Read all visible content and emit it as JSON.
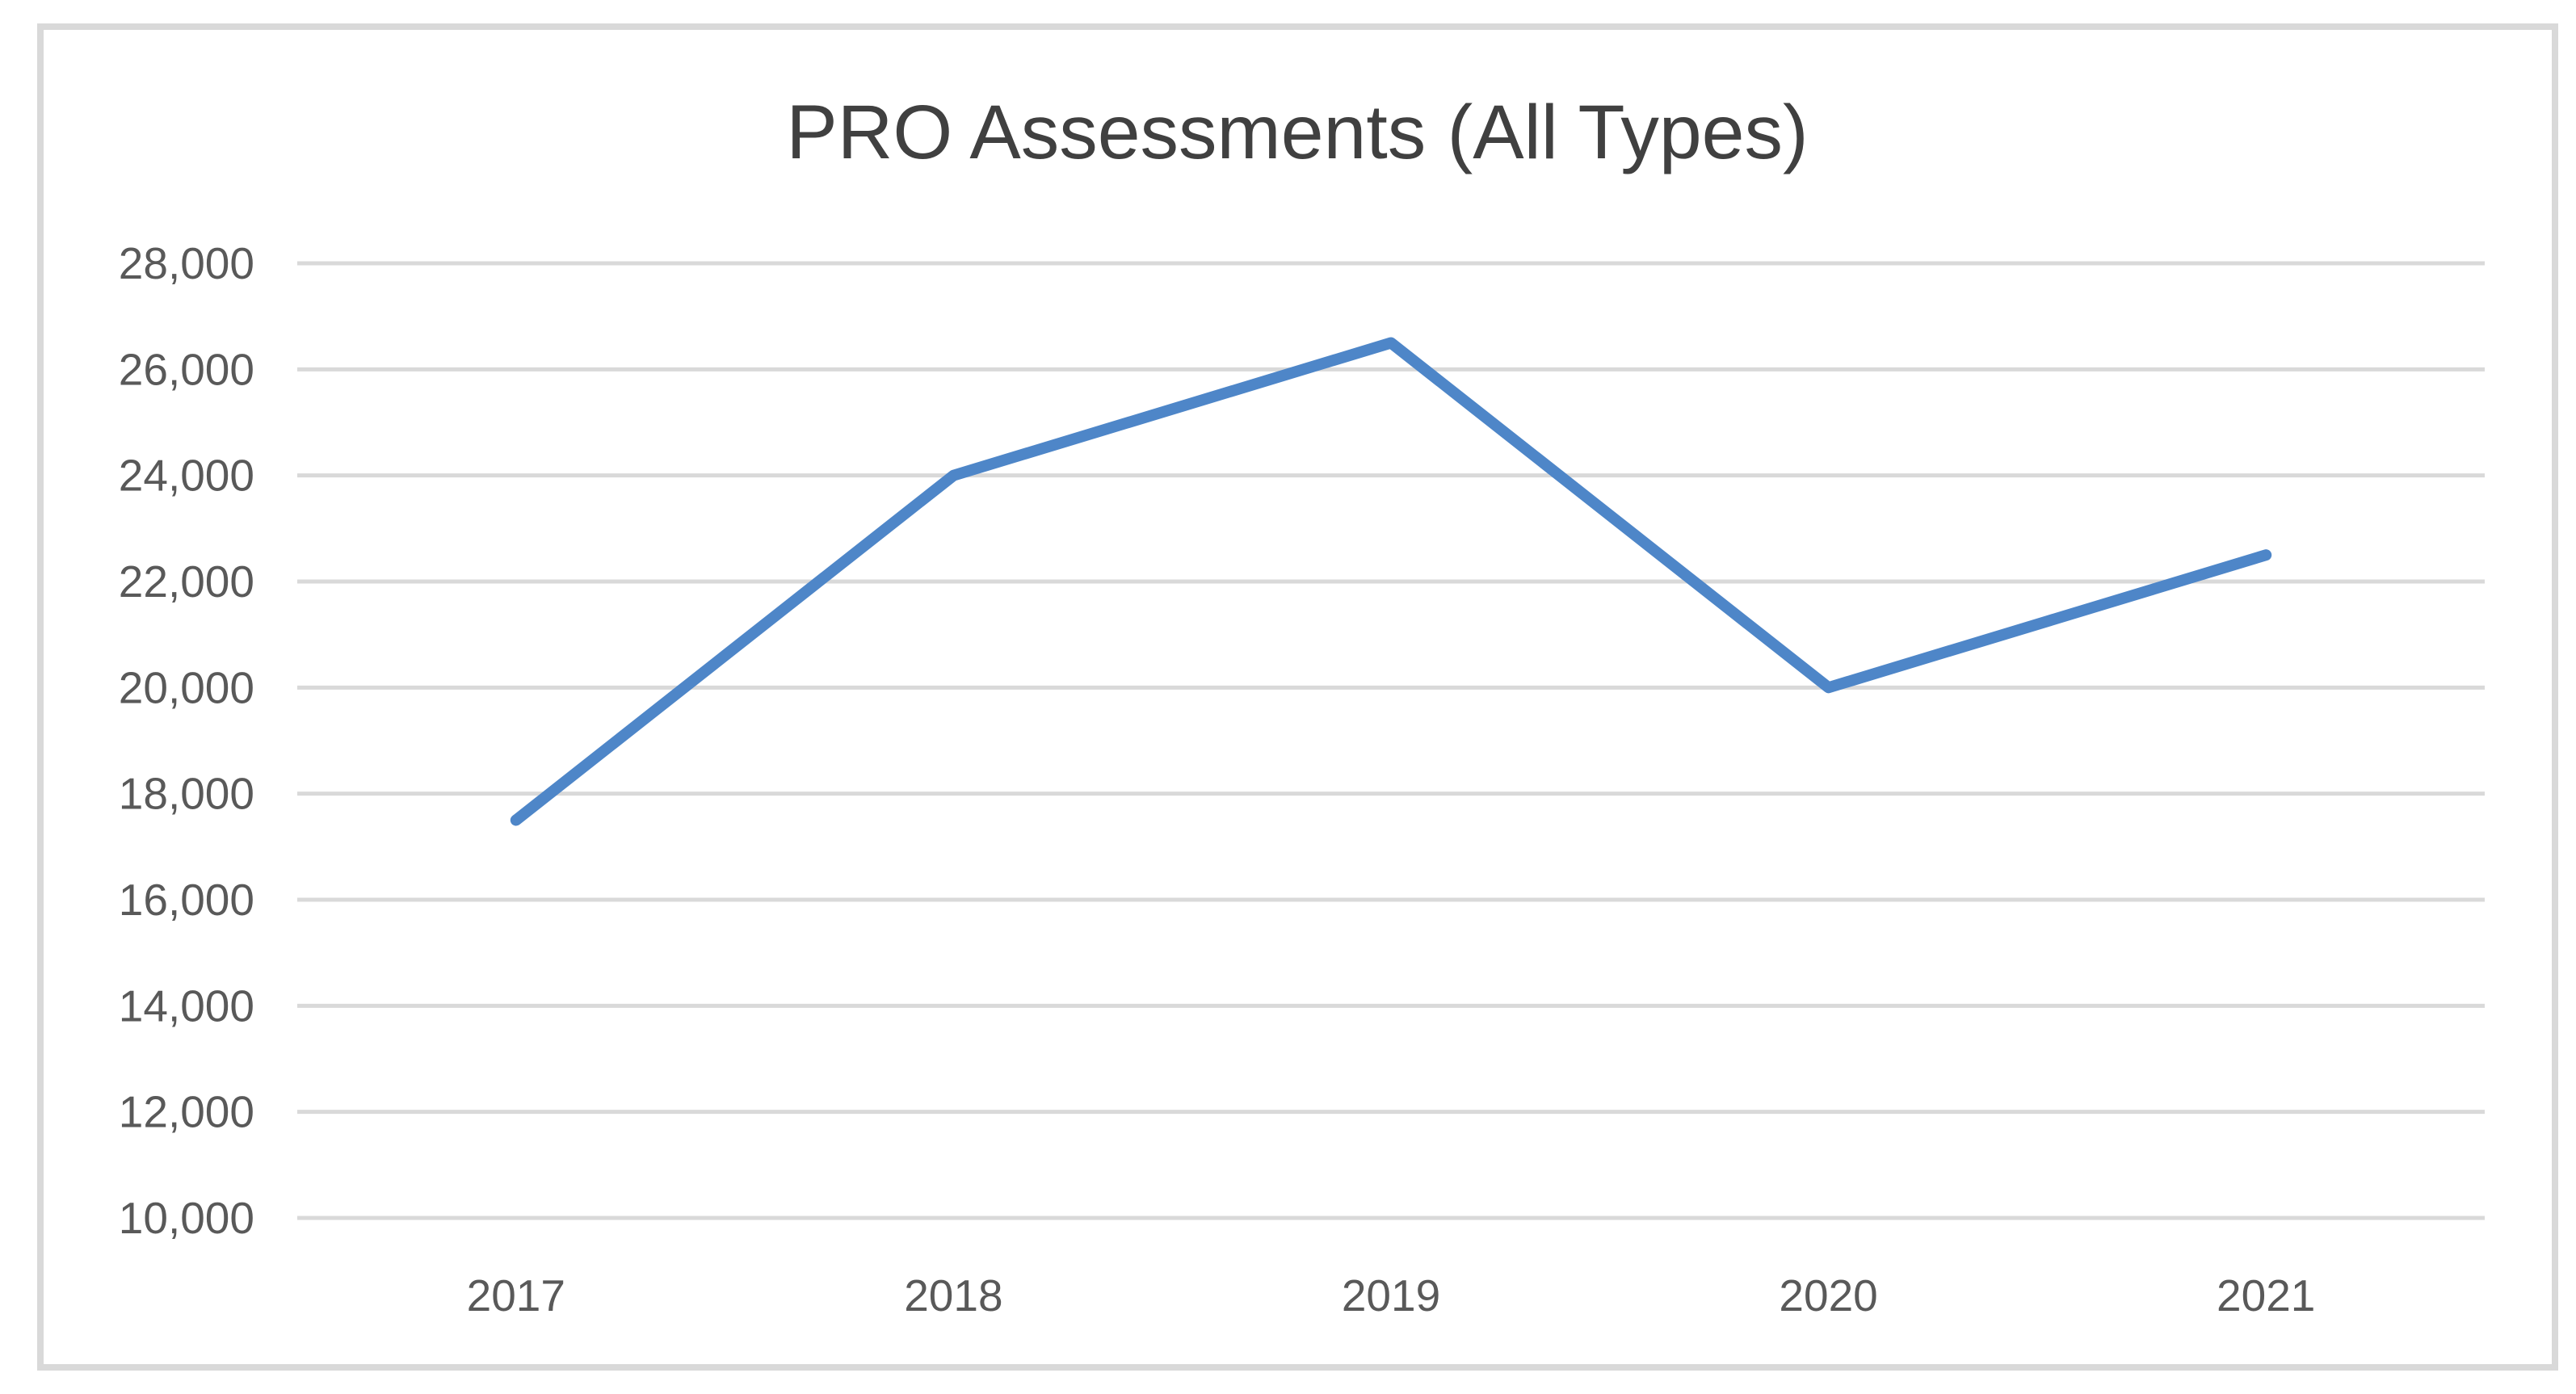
{
  "chart_data": {
    "type": "line",
    "title": "PRO Assessments (All Types)",
    "categories": [
      "2017",
      "2018",
      "2019",
      "2020",
      "2021"
    ],
    "values": [
      17500,
      24000,
      26500,
      20000,
      22500
    ],
    "xlabel": "",
    "ylabel": "",
    "ylim": [
      10000,
      28000
    ],
    "ytick_step": 2000,
    "ytick_labels_top_to_bottom": [
      "28,000",
      "26,000",
      "24,000",
      "22,000",
      "20,000",
      "18,000",
      "16,000",
      "14,000",
      "12,000",
      "10,000"
    ],
    "grid": "horizontal-only",
    "legend": "none",
    "colors": {
      "line": "#4E86C8",
      "gridline": "#D9D9D9",
      "frame_border": "#D9D9D9",
      "title_text": "#404040",
      "axis_text": "#595959",
      "background": "#FFFFFF"
    }
  }
}
